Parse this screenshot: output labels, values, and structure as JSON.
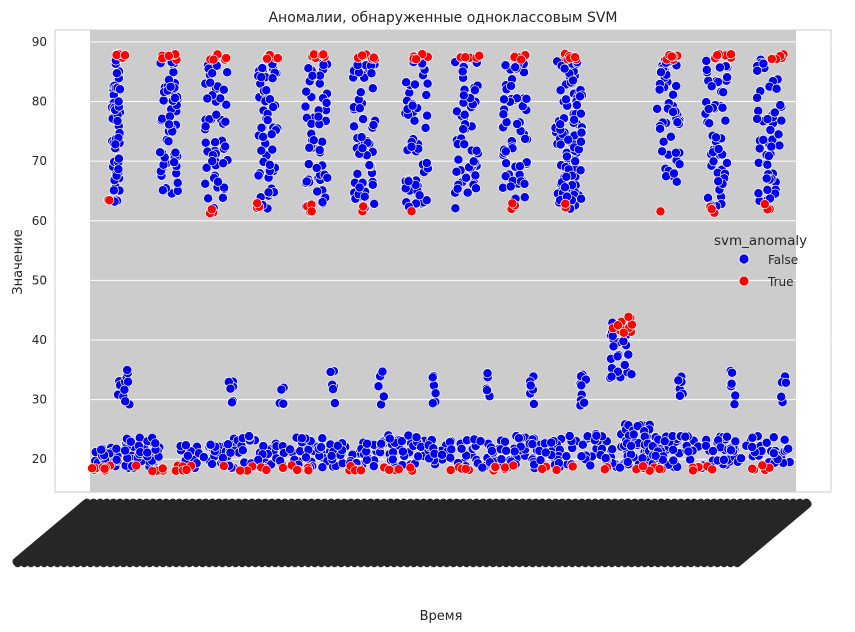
{
  "chart_data": {
    "type": "scatter",
    "title": "Аномалии, обнаруженные одноклассовым SVM",
    "xlabel": "Время",
    "ylabel": "Значение",
    "ylim": [
      14.5,
      92
    ],
    "yticks": [
      20,
      30,
      40,
      50,
      60,
      70,
      80,
      90
    ],
    "grid": true,
    "legend": {
      "title": "svm_anomaly",
      "placement": "right",
      "entries": [
        {
          "label": "False",
          "color": "#0000ee"
        },
        {
          "label": "True",
          "color": "#ff0000"
        }
      ]
    },
    "xticklabels_note": "",
    "colors": {
      "normal": "#0000ee",
      "anomaly": "#ff0000",
      "band": "#cccccc"
    },
    "series": [
      {
        "name": "False",
        "clusters": [
          {
            "range": [
              63,
              87
            ],
            "n": 60
          },
          {
            "range": [
              29,
              35
            ],
            "n": 8
          },
          {
            "range": [
              18.5,
              22
            ],
            "n": 40
          },
          {
            "range": [
              64,
              87
            ],
            "n": 55
          },
          {
            "range": [
              29,
              35
            ],
            "n": 8
          },
          {
            "range": [
              18.5,
              24
            ],
            "n": 40
          },
          {
            "range": [
              62,
              87
            ],
            "n": 55
          },
          {
            "range": [
              29,
              34
            ],
            "n": 6
          },
          {
            "range": [
              18.5,
              22.5
            ],
            "n": 40
          },
          {
            "range": [
              62,
              87
            ],
            "n": 55
          },
          {
            "range": [
              29,
              34
            ],
            "n": 6
          },
          {
            "range": [
              18.5,
              24
            ],
            "n": 40
          },
          {
            "range": [
              62,
              87
            ],
            "n": 55
          },
          {
            "range": [
              29,
              35
            ],
            "n": 6
          },
          {
            "range": [
              18.5,
              24
            ],
            "n": 40
          },
          {
            "range": [
              62,
              87
            ],
            "n": 55
          },
          {
            "range": [
              29,
              35
            ],
            "n": 6
          },
          {
            "range": [
              18.5,
              23
            ],
            "n": 40
          },
          {
            "range": [
              62,
              87
            ],
            "n": 55
          },
          {
            "range": [
              29,
              34
            ],
            "n": 6
          },
          {
            "range": [
              18.5,
              24
            ],
            "n": 40
          },
          {
            "range": [
              62,
              87
            ],
            "n": 55
          },
          {
            "range": [
              30,
              35
            ],
            "n": 6
          },
          {
            "range": [
              18.5,
              23.5
            ],
            "n": 40
          },
          {
            "range": [
              63,
              87
            ],
            "n": 55
          },
          {
            "range": [
              29,
              34.5
            ],
            "n": 6
          },
          {
            "range": [
              18.5,
              24
            ],
            "n": 40
          },
          {
            "range": [
              62,
              87
            ],
            "n": 55
          },
          {
            "range": [
              29,
              34.5
            ],
            "n": 6
          },
          {
            "range": [
              18.5,
              24
            ],
            "n": 40
          },
          {
            "range": [
              62,
              87
            ],
            "n": 55
          },
          {
            "range": [
              29,
              35
            ],
            "n": 6
          },
          {
            "range": [
              18.5,
              24.5
            ],
            "n": 40
          },
          {
            "range": [
              33,
              43
            ],
            "n": 30
          },
          {
            "range": [
              18.5,
              26
            ],
            "n": 40
          },
          {
            "range": [
              66,
              87
            ],
            "n": 50
          },
          {
            "range": [
              29,
              34
            ],
            "n": 6
          },
          {
            "range": [
              18.5,
              24
            ],
            "n": 40
          },
          {
            "range": [
              62,
              87
            ],
            "n": 55
          },
          {
            "range": [
              29,
              35
            ],
            "n": 6
          },
          {
            "range": [
              18.5,
              24
            ],
            "n": 40
          },
          {
            "range": [
              63,
              87
            ],
            "n": 55
          },
          {
            "range": [
              29,
              35
            ],
            "n": 6
          },
          {
            "range": [
              18.5,
              24
            ],
            "n": 40
          }
        ]
      },
      {
        "name": "True",
        "clusters": [
          {
            "range": [
              87,
              88
            ],
            "n": 8
          },
          {
            "range": [
              63,
              64
            ],
            "n": 2
          },
          {
            "range": [
              18,
              19
            ],
            "n": 10
          },
          {
            "range": [
              87,
              88
            ],
            "n": 6
          },
          {
            "range": [
              18,
              19
            ],
            "n": 8
          },
          {
            "range": [
              87,
              88
            ],
            "n": 6
          },
          {
            "range": [
              61,
              63
            ],
            "n": 3
          },
          {
            "range": [
              18,
              19
            ],
            "n": 8
          },
          {
            "range": [
              87,
              88
            ],
            "n": 6
          },
          {
            "range": [
              61,
              63
            ],
            "n": 3
          },
          {
            "range": [
              18,
              19
            ],
            "n": 6
          },
          {
            "range": [
              87,
              88
            ],
            "n": 6
          },
          {
            "range": [
              61,
              63
            ],
            "n": 4
          },
          {
            "range": [
              18,
              19
            ],
            "n": 6
          },
          {
            "range": [
              87,
              88
            ],
            "n": 6
          },
          {
            "range": [
              61.5,
              63
            ],
            "n": 2
          },
          {
            "range": [
              18,
              19
            ],
            "n": 6
          },
          {
            "range": [
              87,
              88
            ],
            "n": 6
          },
          {
            "range": [
              61.5,
              62
            ],
            "n": 1
          },
          {
            "range": [
              18,
              19
            ],
            "n": 6
          },
          {
            "range": [
              87,
              88
            ],
            "n": 6
          },
          {
            "range": [
              18,
              19
            ],
            "n": 6
          },
          {
            "range": [
              87,
              88
            ],
            "n": 6
          },
          {
            "range": [
              61.5,
              63
            ],
            "n": 3
          },
          {
            "range": [
              18,
              19
            ],
            "n": 6
          },
          {
            "range": [
              87,
              88
            ],
            "n": 6
          },
          {
            "range": [
              62,
              63
            ],
            "n": 2
          },
          {
            "range": [
              18,
              19
            ],
            "n": 6
          },
          {
            "range": [
              41,
              44
            ],
            "n": 12
          },
          {
            "range": [
              87,
              88
            ],
            "n": 6
          },
          {
            "range": [
              61.5,
              62
            ],
            "n": 1
          },
          {
            "range": [
              18,
              19
            ],
            "n": 6
          },
          {
            "range": [
              87,
              88
            ],
            "n": 6
          },
          {
            "range": [
              61,
              63
            ],
            "n": 3
          },
          {
            "range": [
              18,
              19
            ],
            "n": 6
          },
          {
            "range": [
              87,
              88
            ],
            "n": 6
          },
          {
            "range": [
              61,
              63
            ],
            "n": 3
          },
          {
            "range": [
              18,
              19
            ],
            "n": 6
          }
        ]
      }
    ]
  }
}
